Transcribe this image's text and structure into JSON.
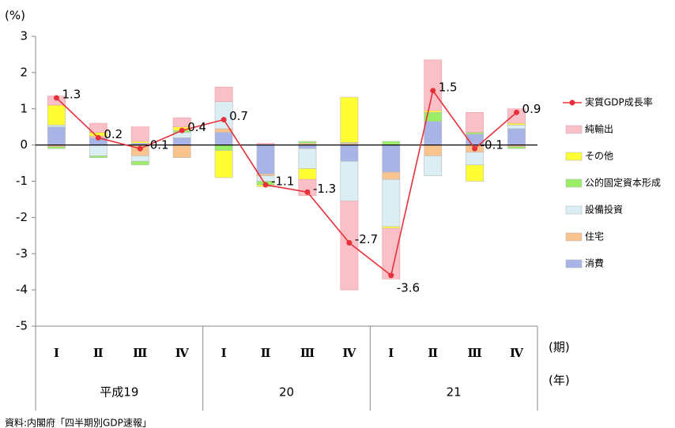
{
  "chart_data": {
    "type": "bar",
    "stacked": true,
    "y_label": "(%)",
    "x_label": "(期)",
    "group_label": "(年)",
    "source": "資料:内閣府「四半期別GDP速報」",
    "categories": [
      "Ⅰ",
      "Ⅱ",
      "Ⅲ",
      "Ⅳ",
      "Ⅰ",
      "Ⅱ",
      "Ⅲ",
      "Ⅳ",
      "Ⅰ",
      "Ⅱ",
      "Ⅲ",
      "Ⅳ"
    ],
    "x_groups": [
      "平成19",
      "20",
      "21"
    ],
    "ylim": [
      -5,
      3
    ],
    "yticks": [
      -5,
      -4,
      -3,
      -2,
      -1,
      0,
      1,
      2,
      3
    ],
    "legend": "right",
    "series": [
      {
        "name": "消費",
        "color": "#a9b4e6",
        "values": [
          0.5,
          0.2,
          0.05,
          0.2,
          0.35,
          -0.8,
          -0.1,
          -0.45,
          -0.75,
          0.65,
          0.3,
          0.45
        ]
      },
      {
        "name": "住宅",
        "color": "#f9c38e",
        "values": [
          -0.05,
          0.05,
          -0.3,
          -0.35,
          0.1,
          -0.05,
          0.05,
          0.05,
          -0.2,
          -0.3,
          -0.2,
          -0.05
        ]
      },
      {
        "name": "設備投資",
        "color": "#dbeef4",
        "values": [
          0.05,
          -0.3,
          -0.15,
          0.15,
          0.75,
          -0.15,
          -0.55,
          -1.1,
          -1.3,
          -0.55,
          -0.35,
          0.1
        ]
      },
      {
        "name": "公的固定資本形成",
        "color": "#99ee66",
        "values": [
          -0.05,
          -0.05,
          -0.1,
          0.05,
          -0.15,
          -0.1,
          0.05,
          0.02,
          0.1,
          0.25,
          0.05,
          -0.05
        ]
      },
      {
        "name": "その他",
        "color": "#ffff33",
        "values": [
          0.55,
          0.1,
          0.05,
          0.1,
          -0.75,
          -0.05,
          -0.3,
          1.25,
          -0.05,
          0.05,
          -0.45,
          0.05
        ]
      },
      {
        "name": "純輸出",
        "color": "#f9c0c8",
        "values": [
          0.25,
          0.25,
          0.4,
          0.25,
          0.4,
          0.05,
          -0.45,
          -2.45,
          -1.4,
          1.4,
          0.55,
          0.4
        ]
      },
      {
        "name": "実質GDP成長率",
        "type": "line",
        "color": "#e8303a",
        "values": [
          1.3,
          0.2,
          -0.1,
          0.4,
          0.7,
          -1.1,
          -1.3,
          -2.7,
          -3.6,
          1.5,
          -0.1,
          0.9
        ]
      }
    ]
  }
}
